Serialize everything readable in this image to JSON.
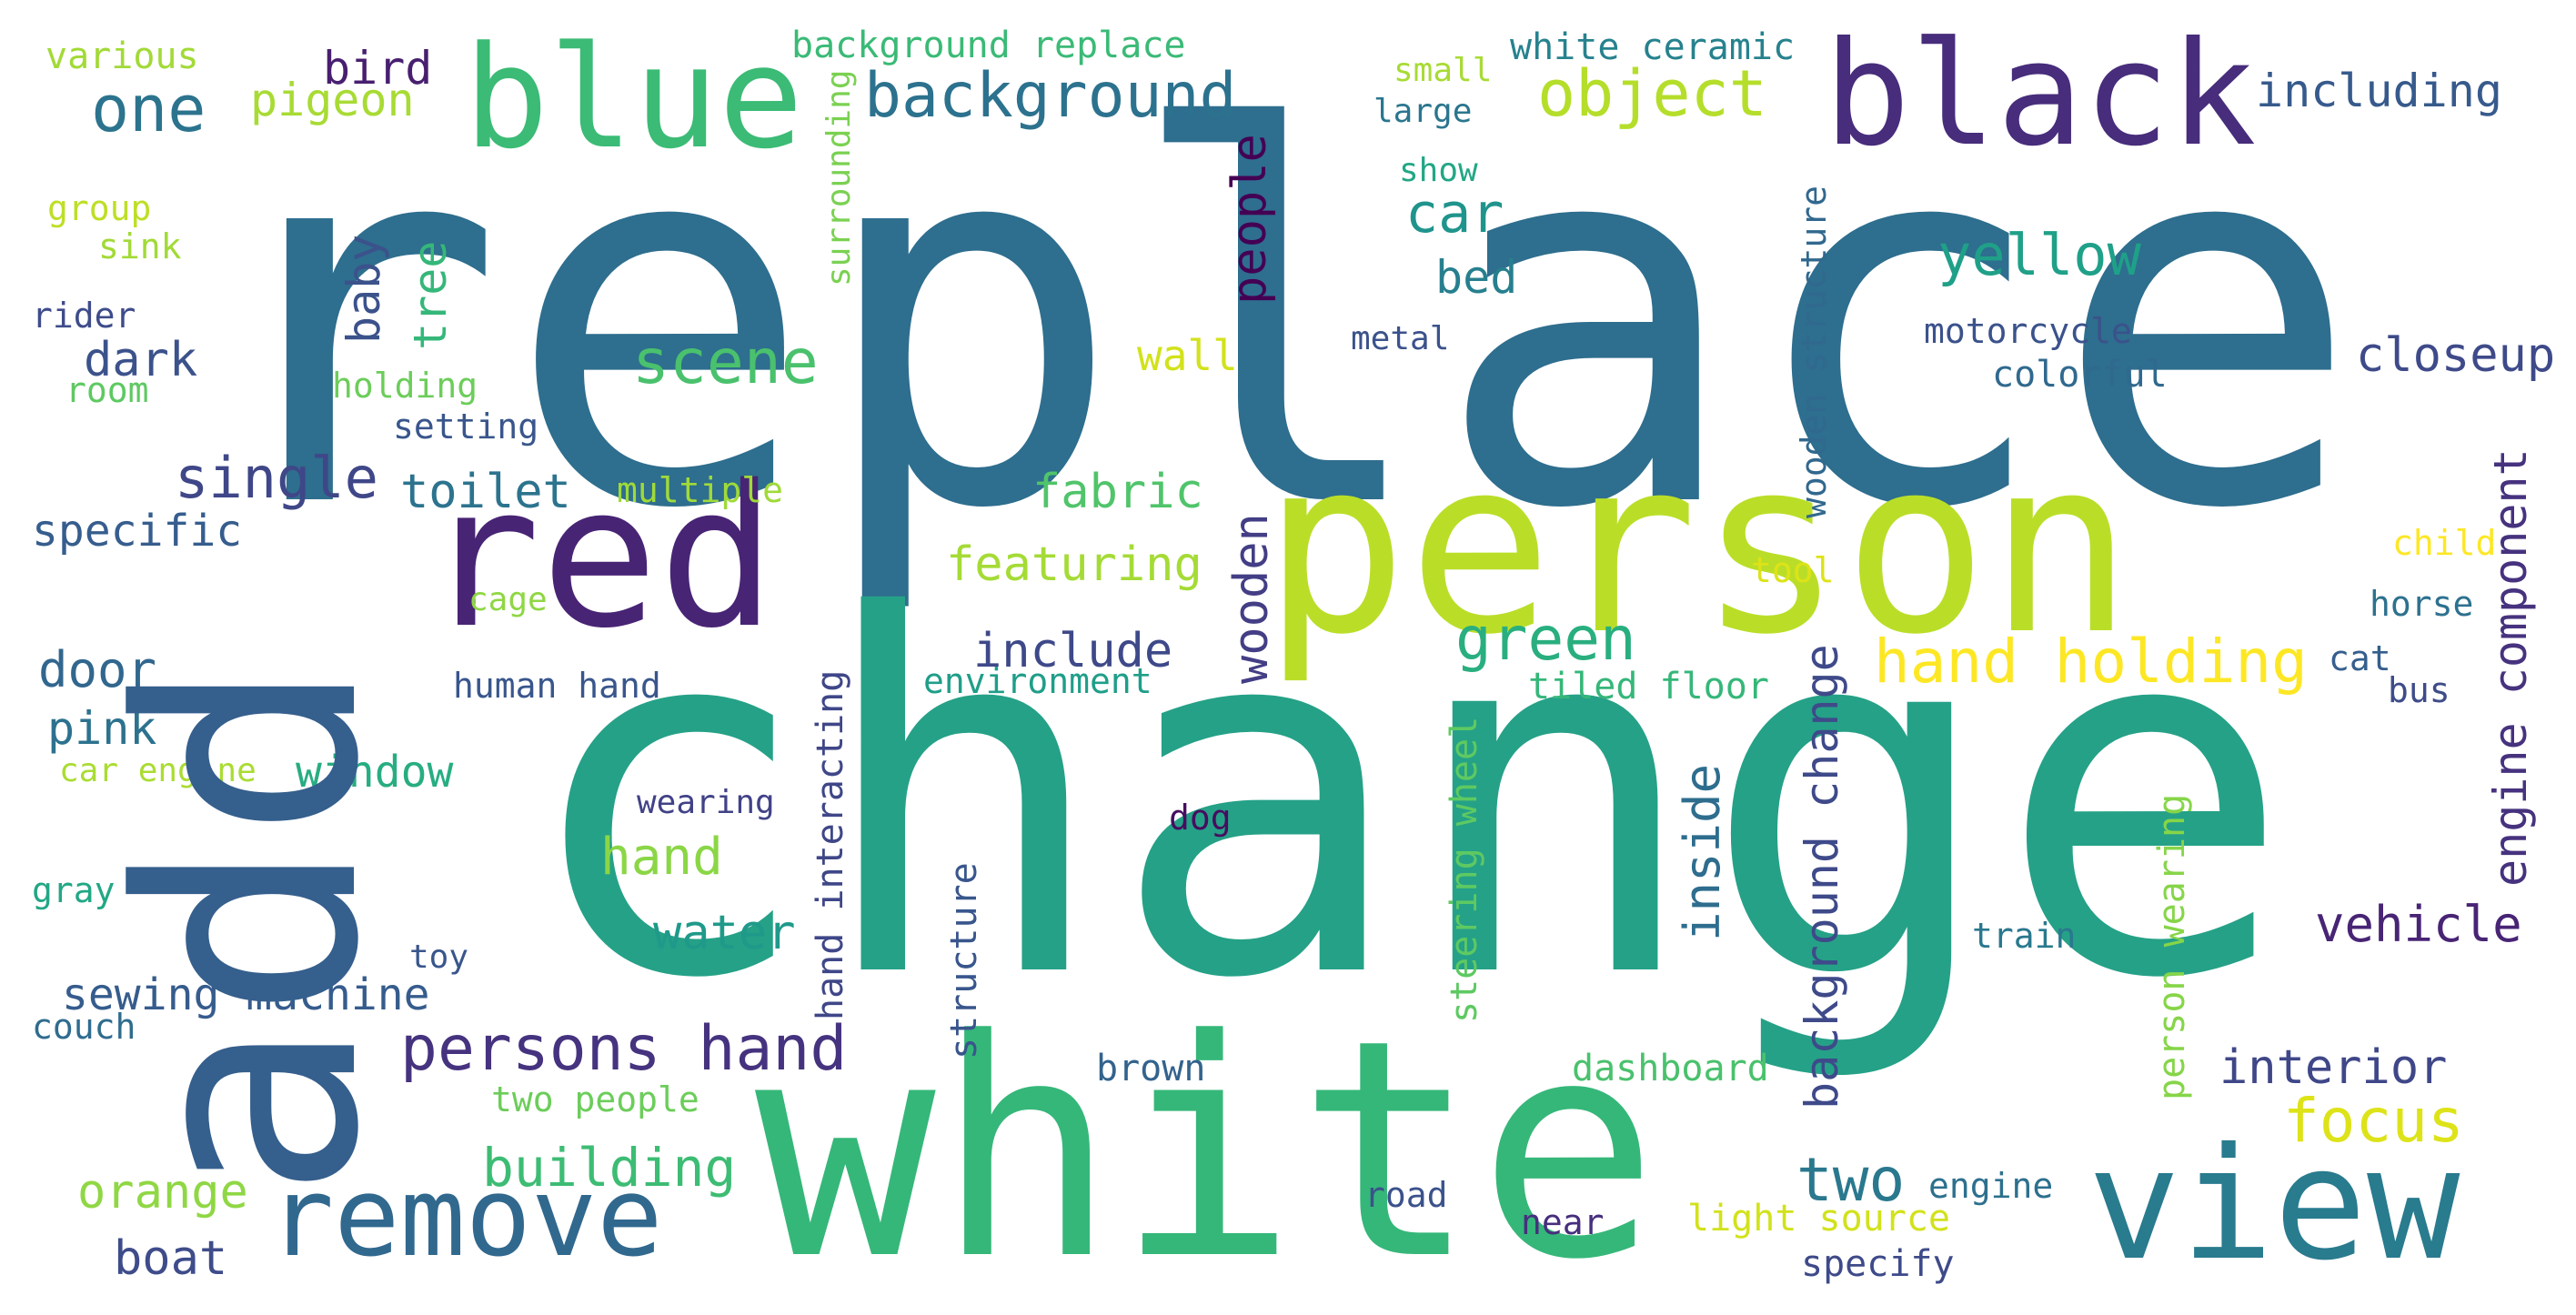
{
  "words": [
    {
      "text": "replace",
      "color": "#2e6e8e",
      "vertical": false
    },
    {
      "text": "change",
      "color": "#25a187",
      "vertical": false
    },
    {
      "text": "person",
      "color": "#bade28",
      "vertical": false
    },
    {
      "text": "white",
      "color": "#35b779",
      "vertical": false
    },
    {
      "text": "add",
      "color": "#355f8d",
      "vertical": true
    },
    {
      "text": "red",
      "color": "#482475",
      "vertical": false
    },
    {
      "text": "black",
      "color": "#472d7b",
      "vertical": false
    },
    {
      "text": "blue",
      "color": "#3bbb75",
      "vertical": false
    },
    {
      "text": "view",
      "color": "#297b8e",
      "vertical": false
    },
    {
      "text": "remove",
      "color": "#31688e",
      "vertical": false
    },
    {
      "text": "background",
      "color": "#2c728e",
      "vertical": false
    },
    {
      "text": "object",
      "color": "#b5de2b",
      "vertical": false
    },
    {
      "text": "one",
      "color": "#2c738e",
      "vertical": false
    },
    {
      "text": "pigeon",
      "color": "#a8db34",
      "vertical": false
    },
    {
      "text": "bird",
      "color": "#481f70",
      "vertical": false
    },
    {
      "text": "various",
      "color": "#a2da37",
      "vertical": false
    },
    {
      "text": "background replace",
      "color": "#3aba76",
      "vertical": false
    },
    {
      "text": "white ceramic",
      "color": "#26828e",
      "vertical": false
    },
    {
      "text": "small",
      "color": "#a8db34",
      "vertical": false
    },
    {
      "text": "large",
      "color": "#2a768e",
      "vertical": false
    },
    {
      "text": "show",
      "color": "#22a785",
      "vertical": false
    },
    {
      "text": "metal",
      "color": "#3b528b",
      "vertical": false
    },
    {
      "text": "including",
      "color": "#375a8c",
      "vertical": false
    },
    {
      "text": "car",
      "color": "#1f948c",
      "vertical": false
    },
    {
      "text": "yellow",
      "color": "#1fa088",
      "vertical": false
    },
    {
      "text": "scene",
      "color": "#4ac16d",
      "vertical": false
    },
    {
      "text": "bed",
      "color": "#277f8e",
      "vertical": false
    },
    {
      "text": "closeup",
      "color": "#3e4a89",
      "vertical": false
    },
    {
      "text": "motorcycle",
      "color": "#3b528b",
      "vertical": false
    },
    {
      "text": "colorful",
      "color": "#30698e",
      "vertical": false
    },
    {
      "text": "wall",
      "color": "#d2e21b",
      "vertical": false
    },
    {
      "text": "dark",
      "color": "#3b528b",
      "vertical": false
    },
    {
      "text": "holding",
      "color": "#6ccd5a",
      "vertical": false
    },
    {
      "text": "setting",
      "color": "#39568c",
      "vertical": false
    },
    {
      "text": "single",
      "color": "#3f4788",
      "vertical": false
    },
    {
      "text": "toilet",
      "color": "#2c738e",
      "vertical": false
    },
    {
      "text": "specific",
      "color": "#365d8d",
      "vertical": false
    },
    {
      "text": "multiple",
      "color": "#a0da39",
      "vertical": false
    },
    {
      "text": "fabric",
      "color": "#50c46a",
      "vertical": false
    },
    {
      "text": "featuring",
      "color": "#a5db36",
      "vertical": false
    },
    {
      "text": "group",
      "color": "#bddf26",
      "vertical": false
    },
    {
      "text": "sink",
      "color": "#a2da37",
      "vertical": false
    },
    {
      "text": "rider",
      "color": "#3e4c8a",
      "vertical": false
    },
    {
      "text": "room",
      "color": "#5ec962",
      "vertical": false
    },
    {
      "text": "cage",
      "color": "#8fd744",
      "vertical": false
    },
    {
      "text": "door",
      "color": "#31678e",
      "vertical": false
    },
    {
      "text": "pink",
      "color": "#2c728e",
      "vertical": false
    },
    {
      "text": "human hand",
      "color": "#39568c",
      "vertical": false
    },
    {
      "text": "include",
      "color": "#3e4989",
      "vertical": false
    },
    {
      "text": "green",
      "color": "#29af7f",
      "vertical": false
    },
    {
      "text": "hand holding",
      "color": "#fde725",
      "vertical": false
    },
    {
      "text": "environment",
      "color": "#1f9e89",
      "vertical": false
    },
    {
      "text": "tiled floor",
      "color": "#35b779",
      "vertical": false
    },
    {
      "text": "cat",
      "color": "#355f8d",
      "vertical": false
    },
    {
      "text": "bus",
      "color": "#3e4c8a",
      "vertical": false
    },
    {
      "text": "horse",
      "color": "#2d718e",
      "vertical": false
    },
    {
      "text": "child",
      "color": "#fde725",
      "vertical": false
    },
    {
      "text": "tool",
      "color": "#dde318",
      "vertical": false
    },
    {
      "text": "window",
      "color": "#27ad81",
      "vertical": false
    },
    {
      "text": "car engine",
      "color": "#aadc32",
      "vertical": false
    },
    {
      "text": "wearing",
      "color": "#414287",
      "vertical": false
    },
    {
      "text": "hand",
      "color": "#8bd646",
      "vertical": false
    },
    {
      "text": "gray",
      "color": "#22a785",
      "vertical": false
    },
    {
      "text": "water",
      "color": "#1f998a",
      "vertical": false
    },
    {
      "text": "vehicle",
      "color": "#482475",
      "vertical": false
    },
    {
      "text": "dog",
      "color": "#470d60",
      "vertical": false
    },
    {
      "text": "toy",
      "color": "#39568c",
      "vertical": false
    },
    {
      "text": "sewing machine",
      "color": "#365c8d",
      "vertical": false
    },
    {
      "text": "couch",
      "color": "#2f6c8e",
      "vertical": false
    },
    {
      "text": "persons hand",
      "color": "#46337f",
      "vertical": false
    },
    {
      "text": "two people",
      "color": "#6ccd5a",
      "vertical": false
    },
    {
      "text": "brown",
      "color": "#33638d",
      "vertical": false
    },
    {
      "text": "dashboard",
      "color": "#4ac16d",
      "vertical": false
    },
    {
      "text": "interior",
      "color": "#3f4788",
      "vertical": false
    },
    {
      "text": "focus",
      "color": "#dde318",
      "vertical": false
    },
    {
      "text": "train",
      "color": "#2a788e",
      "vertical": false
    },
    {
      "text": "building",
      "color": "#3dbc74",
      "vertical": false
    },
    {
      "text": "orange",
      "color": "#8fd744",
      "vertical": false
    },
    {
      "text": "boat",
      "color": "#3e4c8a",
      "vertical": false
    },
    {
      "text": "road",
      "color": "#3b528b",
      "vertical": false
    },
    {
      "text": "near",
      "color": "#472f7d",
      "vertical": false
    },
    {
      "text": "light source",
      "color": "#d2e21b",
      "vertical": false
    },
    {
      "text": "two",
      "color": "#2a788e",
      "vertical": false
    },
    {
      "text": "engine",
      "color": "#2d708e",
      "vertical": false
    },
    {
      "text": "specify",
      "color": "#3e4a89",
      "vertical": false
    },
    {
      "text": "surrounding",
      "color": "#7ad151",
      "vertical": true
    },
    {
      "text": "baby",
      "color": "#3b528b",
      "vertical": true
    },
    {
      "text": "tree",
      "color": "#35b779",
      "vertical": true
    },
    {
      "text": "people",
      "color": "#440154",
      "vertical": true
    },
    {
      "text": "wooden structure",
      "color": "#31688e",
      "vertical": true
    },
    {
      "text": "wooden",
      "color": "#433e85",
      "vertical": true
    },
    {
      "text": "engine component",
      "color": "#46327e",
      "vertical": true
    },
    {
      "text": "hand interacting",
      "color": "#3f4788",
      "vertical": true
    },
    {
      "text": "structure",
      "color": "#39568c",
      "vertical": true
    },
    {
      "text": "steering wheel",
      "color": "#5ec962",
      "vertical": true
    },
    {
      "text": "background change",
      "color": "#3e4a89",
      "vertical": true
    },
    {
      "text": "inside",
      "color": "#2e6d8e",
      "vertical": true
    },
    {
      "text": "person wearing",
      "color": "#86d549",
      "vertical": true
    }
  ]
}
